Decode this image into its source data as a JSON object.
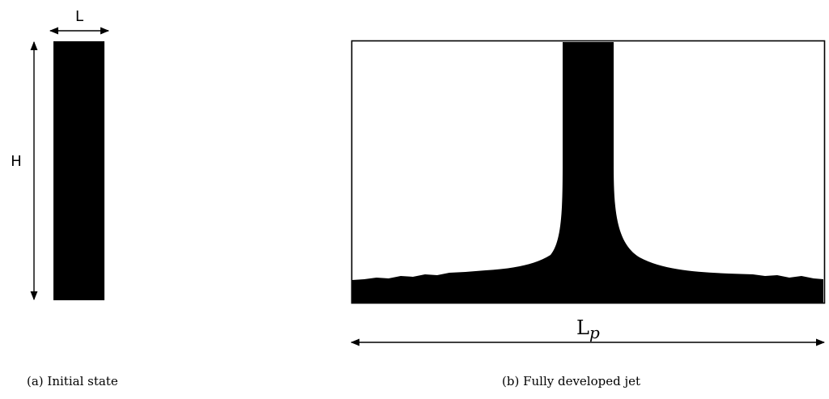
{
  "panel_a": {
    "width_label": "L",
    "height_label": "H",
    "caption": "(a) Initial state"
  },
  "panel_b": {
    "length_label_main": "L",
    "length_label_sub": "p",
    "caption": "(b) Fully developed jet"
  },
  "colors": {
    "fluid": "#000000",
    "background": "#ffffff",
    "outline": "#000000"
  }
}
